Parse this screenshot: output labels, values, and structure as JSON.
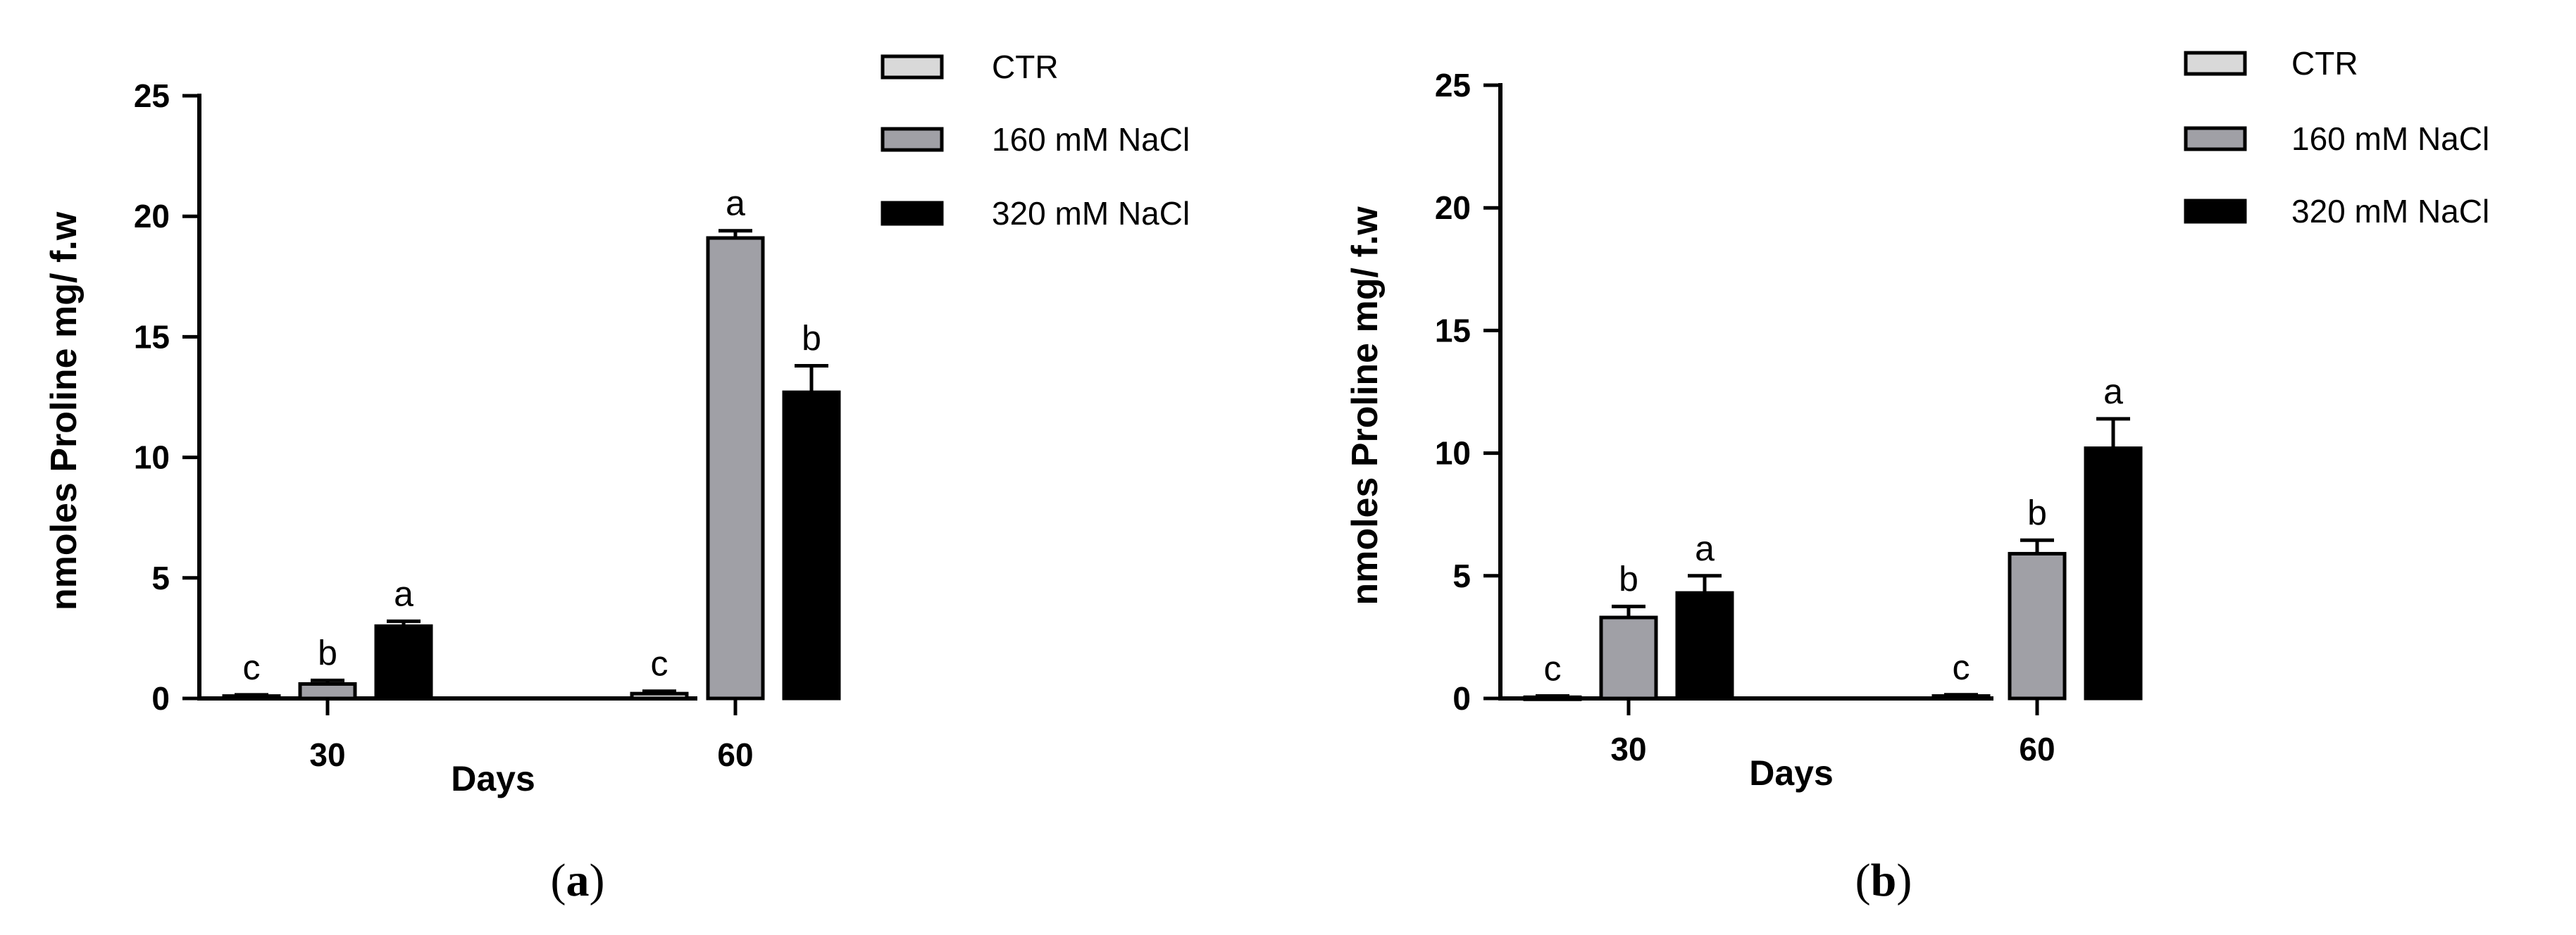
{
  "chart_data": [
    {
      "type": "bar",
      "panel": "a",
      "categories": [
        "30",
        "60"
      ],
      "xlabel": "Days",
      "ylabel": "nmoles Proline mg/ f.w",
      "ylim": [
        0,
        25
      ],
      "yticks": [
        0,
        5,
        10,
        15,
        20,
        25
      ],
      "grid": false,
      "legend_position": "top-right",
      "series": [
        {
          "name": "CTR",
          "color": "#d9d9d9",
          "values": [
            0.1,
            0.2
          ],
          "errors": [
            0.05,
            0.1
          ],
          "letters": [
            "c",
            "c"
          ]
        },
        {
          "name": "160 mM NaCl",
          "color": "#a0a0a6",
          "values": [
            0.6,
            19.1
          ],
          "errors": [
            0.15,
            0.3
          ],
          "letters": [
            "b",
            "a"
          ]
        },
        {
          "name": "320 mM NaCl",
          "color": "#000000",
          "values": [
            3.0,
            12.7
          ],
          "errors": [
            0.2,
            1.1
          ],
          "letters": [
            "a",
            "b"
          ]
        }
      ]
    },
    {
      "type": "bar",
      "panel": "b",
      "categories": [
        "30",
        "60"
      ],
      "xlabel": "Days",
      "ylabel": "nmoles Proline mg/ f.w",
      "ylim": [
        0,
        25
      ],
      "yticks": [
        0,
        5,
        10,
        15,
        20,
        25
      ],
      "grid": false,
      "legend_position": "top-right",
      "series": [
        {
          "name": "CTR",
          "color": "#d9d9d9",
          "values": [
            0.05,
            0.1
          ],
          "errors": [
            0.05,
            0.05
          ],
          "letters": [
            "c",
            "c"
          ]
        },
        {
          "name": "160 mM NaCl",
          "color": "#a0a0a6",
          "values": [
            3.3,
            5.9
          ],
          "errors": [
            0.45,
            0.55
          ],
          "letters": [
            "b",
            "b"
          ]
        },
        {
          "name": "320 mM NaCl",
          "color": "#000000",
          "values": [
            4.3,
            10.2
          ],
          "errors": [
            0.7,
            1.2
          ],
          "letters": [
            "a",
            "a"
          ]
        }
      ]
    }
  ],
  "labels": {
    "panel_a_open": "(",
    "panel_a_letter": "a",
    "panel_a_close": ")",
    "panel_b_open": "(",
    "panel_b_letter": "b",
    "panel_b_close": ")"
  }
}
